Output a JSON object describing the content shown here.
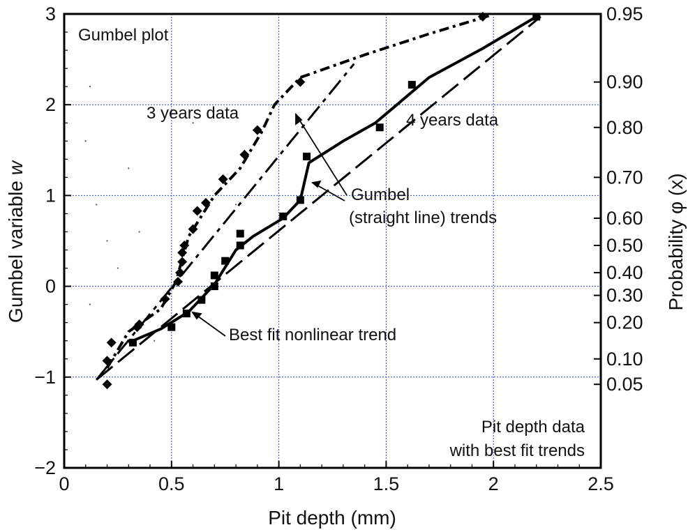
{
  "chart_data": {
    "type": "scatter",
    "title": "",
    "xlabel": "Pit depth (mm)",
    "ylabel_left": "Gumbel variable w",
    "ylabel_right": "Probability φ (x)",
    "xlim": [
      0,
      2.5
    ],
    "ylim": [
      -2,
      3
    ],
    "x_ticks": [
      "0",
      "0.5",
      "1",
      "1.5",
      "2",
      "2.5"
    ],
    "x_tick_values": [
      0,
      0.5,
      1,
      1.5,
      2,
      2.5
    ],
    "y_ticks": [
      "−2",
      "−1",
      "0",
      "1",
      "2",
      "3"
    ],
    "y_tick_values": [
      -2,
      -1,
      0,
      1,
      2,
      3
    ],
    "right_ticks": [
      {
        "label": "0.95",
        "w": 3.0
      },
      {
        "label": "0.90",
        "w": 2.25
      },
      {
        "label": "0.80",
        "w": 1.75
      },
      {
        "label": "0.70",
        "w": 1.2
      },
      {
        "label": "0.60",
        "w": 0.75
      },
      {
        "label": "0.50",
        "w": 0.45
      },
      {
        "label": "0.40",
        "w": 0.15
      },
      {
        "label": "0.30",
        "w": -0.1
      },
      {
        "label": "0.20",
        "w": -0.4
      },
      {
        "label": "0.10",
        "w": -0.8
      },
      {
        "label": "0.05",
        "w": -1.08
      }
    ],
    "grid": true,
    "series": [
      {
        "name": "3 years data",
        "marker": "diamond",
        "points": [
          [
            0.2,
            -1.08
          ],
          [
            0.2,
            -0.82
          ],
          [
            0.22,
            -0.62
          ],
          [
            0.34,
            -0.45
          ],
          [
            0.35,
            -0.42
          ],
          [
            0.47,
            -0.14
          ],
          [
            0.53,
            0.05
          ],
          [
            0.54,
            0.15
          ],
          [
            0.55,
            0.27
          ],
          [
            0.55,
            0.37
          ],
          [
            0.56,
            0.45
          ],
          [
            0.6,
            0.63
          ],
          [
            0.62,
            0.83
          ],
          [
            0.66,
            0.92
          ],
          [
            0.74,
            1.18
          ],
          [
            0.84,
            1.45
          ],
          [
            0.9,
            1.72
          ],
          [
            1.1,
            2.25
          ],
          [
            1.95,
            2.97
          ]
        ]
      },
      {
        "name": "4 years data",
        "marker": "square",
        "points": [
          [
            0.32,
            -0.62
          ],
          [
            0.5,
            -0.45
          ],
          [
            0.57,
            -0.3
          ],
          [
            0.64,
            -0.15
          ],
          [
            0.7,
            0.0
          ],
          [
            0.7,
            0.12
          ],
          [
            0.75,
            0.28
          ],
          [
            0.82,
            0.58
          ],
          [
            0.82,
            0.45
          ],
          [
            1.02,
            0.77
          ],
          [
            1.1,
            0.95
          ],
          [
            1.13,
            1.43
          ],
          [
            1.47,
            1.75
          ],
          [
            1.62,
            2.22
          ],
          [
            2.2,
            2.97
          ]
        ]
      }
    ],
    "trend_3yr_nonlinear": [
      [
        0.2,
        -0.9
      ],
      [
        0.3,
        -0.5
      ],
      [
        0.45,
        -0.25
      ],
      [
        0.52,
        0.05
      ],
      [
        0.58,
        0.55
      ],
      [
        0.7,
        1.0
      ],
      [
        0.82,
        1.3
      ],
      [
        0.92,
        1.7
      ],
      [
        0.98,
        2.0
      ],
      [
        1.1,
        2.3
      ],
      [
        1.4,
        2.55
      ],
      [
        1.7,
        2.78
      ],
      [
        1.98,
        2.98
      ]
    ],
    "trend_3yr_linear": [
      [
        0.15,
        -1.03
      ],
      [
        1.35,
        2.45
      ]
    ],
    "trend_4yr_nonlinear": [
      [
        0.3,
        -0.62
      ],
      [
        0.45,
        -0.47
      ],
      [
        0.58,
        -0.28
      ],
      [
        0.7,
        0.02
      ],
      [
        0.8,
        0.4
      ],
      [
        0.88,
        0.55
      ],
      [
        1.02,
        0.75
      ],
      [
        1.1,
        0.95
      ],
      [
        1.14,
        1.36
      ],
      [
        1.3,
        1.6
      ],
      [
        1.45,
        1.8
      ],
      [
        1.55,
        2.0
      ],
      [
        1.7,
        2.3
      ],
      [
        1.95,
        2.62
      ],
      [
        2.2,
        2.97
      ]
    ],
    "trend_4yr_linear": [
      [
        0.15,
        -1.03
      ],
      [
        2.22,
        2.97
      ]
    ],
    "annotations": {
      "gumbel_plot": "Gumbel plot",
      "three_years": "3 years data",
      "four_years": "4 years data",
      "gumbel_trends_1": "Gumbel",
      "gumbel_trends_2": "(straight line) trends",
      "best_fit": "Best fit nonlinear trend",
      "pit_depth_1": "Pit depth data",
      "pit_depth_2": "with best fit trends"
    }
  }
}
